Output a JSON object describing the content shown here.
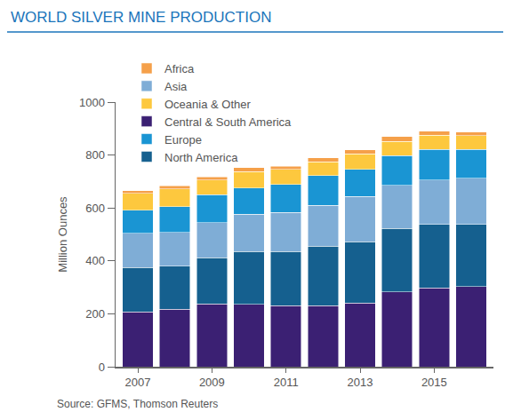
{
  "chart_data": {
    "type": "bar",
    "stacked": true,
    "title": "WORLD SILVER MINE PRODUCTION",
    "y_label": "Million Ounces",
    "source": "Source: GFMS, Thomson Reuters",
    "x": [
      2007,
      2008,
      2009,
      2010,
      2011,
      2012,
      2013,
      2014,
      2015,
      2016
    ],
    "xlim": [
      2006.4,
      2016.6
    ],
    "xticks": [
      2007,
      2009,
      2011,
      2013,
      2015
    ],
    "ylim": [
      0,
      1000
    ],
    "yticks": [
      0,
      200,
      400,
      600,
      800,
      1000
    ],
    "grid": false,
    "legend": "top",
    "series": [
      {
        "name": "Central & South America",
        "color": "#3b2073",
        "values": [
          208,
          218,
          238,
          235,
          230,
          230,
          240,
          282,
          298,
          303
        ]
      },
      {
        "name": "North America",
        "color": "#15608f",
        "values": [
          167,
          162,
          174,
          200,
          205,
          225,
          232,
          240,
          239,
          234
        ]
      },
      {
        "name": "Asia",
        "color": "#7fadd6",
        "values": [
          130,
          128,
          133,
          142,
          148,
          155,
          171,
          163,
          169,
          175
        ]
      },
      {
        "name": "Europe",
        "color": "#1a95d3",
        "values": [
          87,
          97,
          105,
          98,
          105,
          112,
          102,
          112,
          116,
          110
        ]
      },
      {
        "name": "Oceania & Other",
        "color": "#fdc83e",
        "values": [
          63,
          67,
          55,
          63,
          57,
          53,
          60,
          55,
          53,
          51
        ]
      },
      {
        "name": "Africa",
        "color": "#f5a04a",
        "values": [
          10,
          11,
          13,
          14,
          12,
          15,
          15,
          18,
          15,
          13
        ]
      }
    ]
  }
}
